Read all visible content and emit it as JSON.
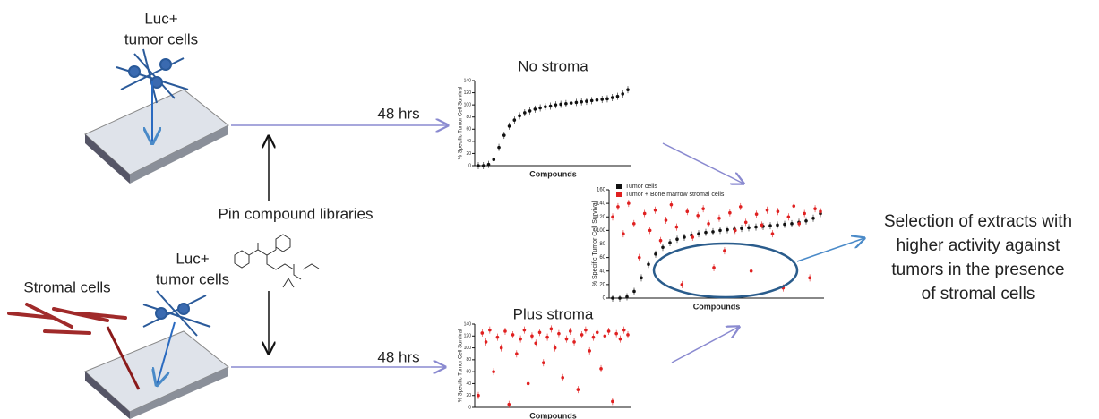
{
  "labels": {
    "top_cells": [
      "Luc+",
      "tumor cells"
    ],
    "stromal": "Stromal cells",
    "bottom_cells": [
      "Luc+",
      "tumor cells"
    ],
    "pin": "Pin compound libraries",
    "time_top": "48 hrs",
    "time_bottom": "48 hrs",
    "result": [
      "Selection of extracts with",
      "higher activity against",
      "tumors in the presence",
      "of stromal cells"
    ]
  },
  "charts": [
    {
      "title": "No stroma",
      "x_label": "Compounds",
      "y_label": "% Specific Tumor Cell Survival",
      "ylim": [
        0,
        140
      ],
      "yticks": [
        0,
        20,
        40,
        60,
        80,
        100,
        120,
        140
      ],
      "series": [
        {
          "color": "#111111",
          "values": [
            0,
            0,
            2,
            10,
            30,
            50,
            65,
            75,
            82,
            87,
            90,
            93,
            95,
            97,
            98,
            100,
            101,
            102,
            103,
            104,
            105,
            106,
            107,
            108,
            109,
            110,
            112,
            114,
            118,
            125
          ]
        }
      ]
    },
    {
      "x_label": "Compounds",
      "y_label": "% Specific Tumor Cell Survival",
      "ylim": [
        0,
        160
      ],
      "yticks": [
        0,
        20,
        40,
        60,
        80,
        100,
        120,
        140,
        160
      ],
      "series": [
        {
          "name": "Tumor cells",
          "color": "#111111",
          "values": [
            0,
            0,
            2,
            10,
            30,
            50,
            65,
            75,
            82,
            87,
            90,
            93,
            95,
            97,
            98,
            100,
            101,
            102,
            103,
            104,
            105,
            106,
            107,
            108,
            109,
            110,
            112,
            114,
            118,
            125
          ]
        },
        {
          "name": "Tumor + Bone marrow stromal cells",
          "color": "#e02020",
          "values": [
            120,
            135,
            95,
            140,
            110,
            60,
            125,
            100,
            130,
            85,
            115,
            138,
            105,
            20,
            128,
            90,
            122,
            132,
            110,
            45,
            118,
            70,
            126,
            100,
            135,
            112,
            40,
            124,
            108,
            130,
            95,
            128,
            15,
            120,
            136,
            110,
            125,
            30,
            132,
            128
          ]
        }
      ]
    },
    {
      "title": "Plus stroma",
      "x_label": "Compounds",
      "y_label": "% Specific Tumor Cell Survival",
      "ylim": [
        0,
        140
      ],
      "yticks": [
        0,
        20,
        40,
        60,
        80,
        100,
        120,
        140
      ],
      "series": [
        {
          "color": "#e02020",
          "values": [
            20,
            125,
            110,
            130,
            60,
            118,
            100,
            128,
            5,
            122,
            90,
            115,
            130,
            40,
            120,
            108,
            126,
            75,
            118,
            132,
            100,
            124,
            50,
            115,
            128,
            110,
            30,
            122,
            130,
            95,
            118,
            126,
            65,
            120,
            128,
            10,
            124,
            115,
            130,
            122
          ]
        }
      ]
    }
  ]
}
